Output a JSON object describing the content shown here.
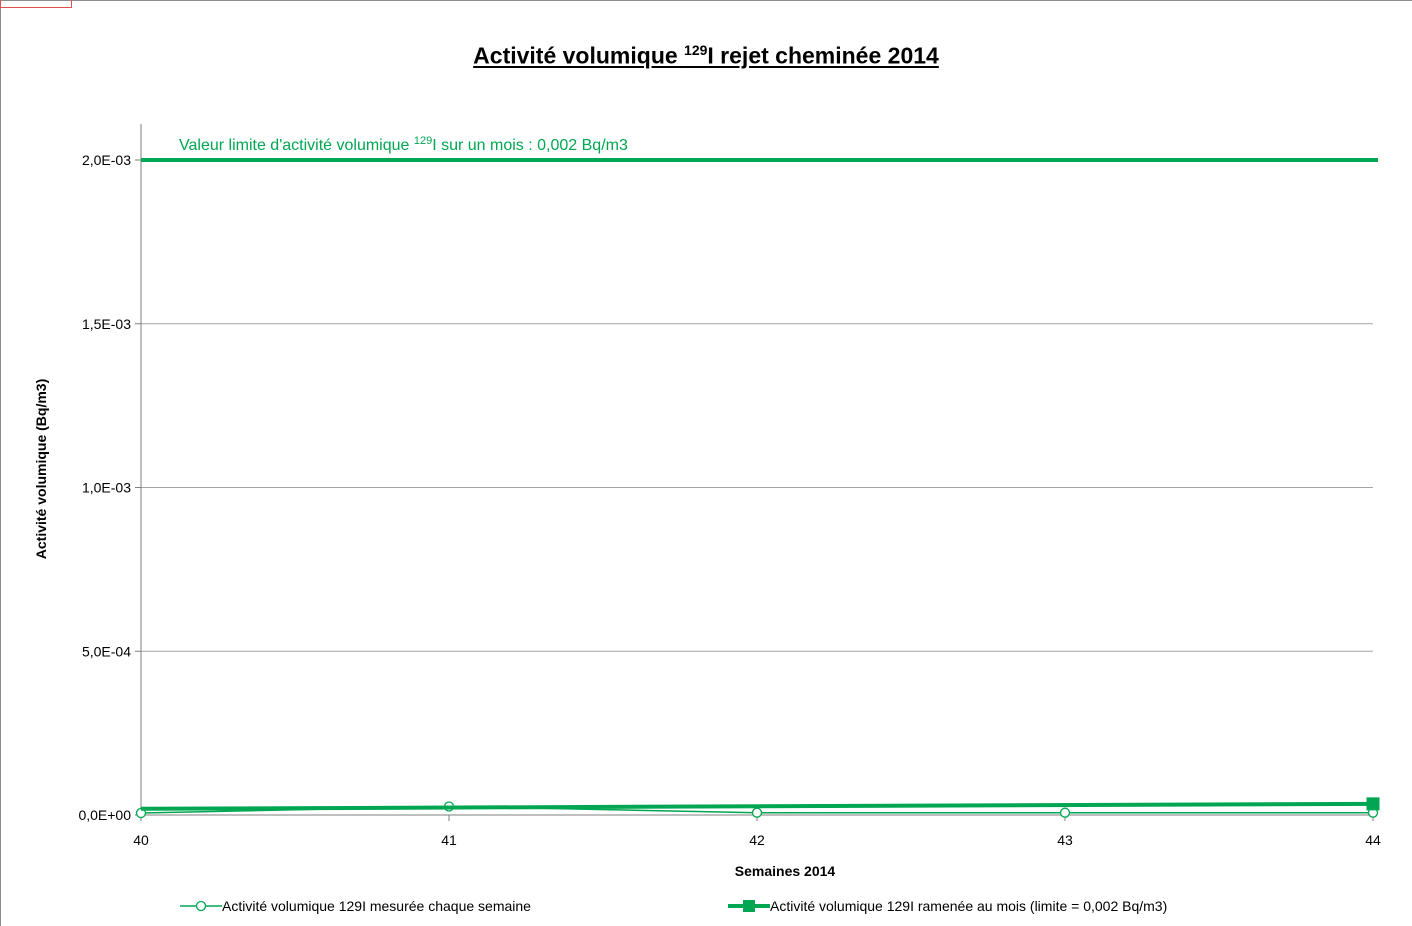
{
  "chart_data": {
    "type": "line",
    "title": {
      "prefix": "Activité volumique ",
      "superscript": "129",
      "suffix": "I rejet cheminée 2014"
    },
    "xlabel": "Semaines 2014",
    "ylabel": "Activité volumique (Bq/m3)",
    "x": [
      40,
      41,
      42,
      43,
      44
    ],
    "x_tick_labels": [
      "40",
      "41",
      "42",
      "43",
      "44"
    ],
    "xlim": [
      40,
      44
    ],
    "ylim": [
      0,
      0.002
    ],
    "y_ticks": [
      0,
      0.0005,
      0.001,
      0.0015,
      0.002
    ],
    "y_tick_labels": [
      "0,0E+00",
      "5,0E-04",
      "1,0E-03",
      "1,5E-03",
      "2,0E-03"
    ],
    "grid": true,
    "legend_position": "bottom",
    "colors": {
      "series": "#00a651",
      "limit": "#00a651",
      "grid": "#a6a6a6",
      "axis": "#7f7f7f"
    },
    "series": [
      {
        "name": "Activité volumique 129I mesurée chaque semaine",
        "marker": "circle-open",
        "x": [
          40,
          41,
          42,
          43,
          44
        ],
        "values": [
          6e-06,
          2.6e-05,
          7e-06,
          7e-06,
          7e-06
        ]
      },
      {
        "name": "Activité volumique 129I ramenée au mois (limite = 0,002 Bq/m3)",
        "marker": "square-filled-last",
        "x": [
          40,
          44
        ],
        "values": [
          1.9e-05,
          3.4e-05
        ]
      }
    ],
    "limit_line": {
      "value": 0.002,
      "label_prefix": "Valeur limite d'activité volumique ",
      "label_superscript": "129",
      "label_suffix": "I sur un mois : 0,002 Bq/m3"
    }
  }
}
